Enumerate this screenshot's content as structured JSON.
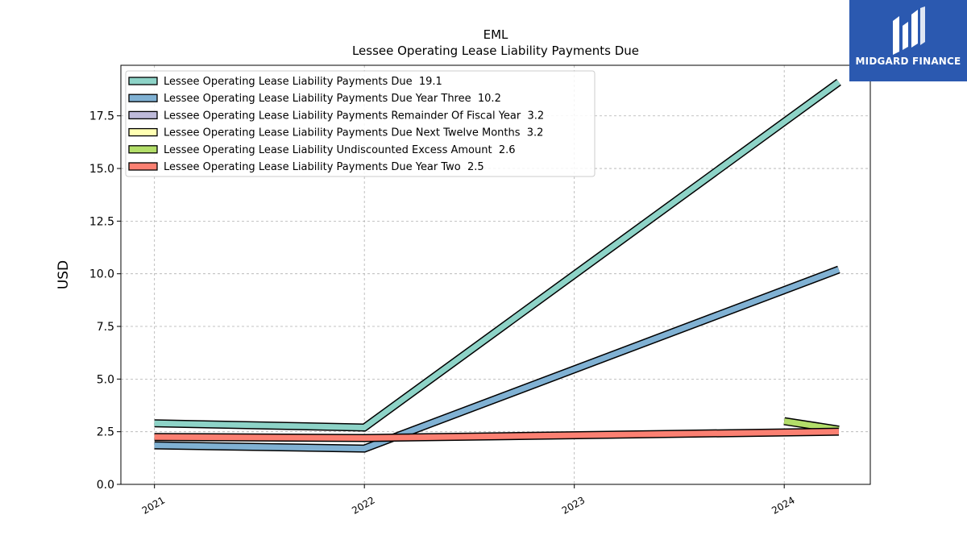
{
  "logo": {
    "name": "MIDGARD FINANCE",
    "background": "#2b59b0",
    "icon": "midgard-logo-icon"
  },
  "chart_data": {
    "type": "line",
    "title": "EML",
    "subtitle": "Lessee Operating Lease Liability Payments Due",
    "xlabel": "",
    "ylabel": "USD",
    "x_ticks": [
      "2021",
      "2022",
      "2023",
      "2024"
    ],
    "xlim": [
      2020.84,
      2024.41
    ],
    "ylim": [
      0,
      19.9
    ],
    "y_ticks": [
      "0.0",
      "2.5",
      "5.0",
      "7.5",
      "10.0",
      "12.5",
      "15.0",
      "17.5"
    ],
    "grid": true,
    "legend_position": "top-left",
    "series": [
      {
        "name": "Lessee Operating Lease Liability Payments Due",
        "label": "19.1",
        "color": "#8dd3c7",
        "x": [
          2021,
          2022,
          2024.26
        ],
        "y": [
          2.9,
          2.7,
          19.1
        ]
      },
      {
        "name": "Lessee Operating Lease Liability Payments Due Year Three",
        "label": "10.2",
        "color": "#80b1d3",
        "x": [
          2021,
          2022,
          2024.26
        ],
        "y": [
          1.85,
          1.7,
          10.2
        ]
      },
      {
        "name": "Lessee Operating Lease Liability Payments Remainder Of Fiscal Year",
        "label": "3.2",
        "color": "#bebada",
        "x": [],
        "y": []
      },
      {
        "name": "Lessee Operating Lease Liability Payments Due Next Twelve Months",
        "label": "3.2",
        "color": "#ffffb3",
        "x": [],
        "y": []
      },
      {
        "name": "Lessee Operating Lease Liability Undiscounted Excess Amount",
        "label": "2.6",
        "color": "#b3de69",
        "x": [
          2024,
          2024.26
        ],
        "y": [
          3.0,
          2.6
        ]
      },
      {
        "name": "Lessee Operating Lease Liability Payments Due Year Two",
        "label": "2.5",
        "color": "#fb8072",
        "x": [
          2021,
          2022,
          2024.26
        ],
        "y": [
          2.25,
          2.2,
          2.5
        ]
      }
    ]
  }
}
